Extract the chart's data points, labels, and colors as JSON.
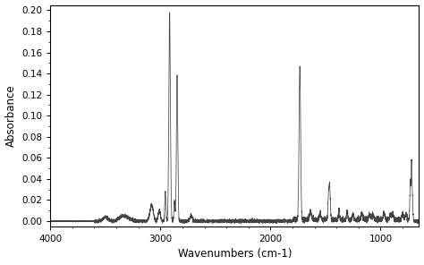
{
  "xlabel": "Wavenumbers (cm-1)",
  "ylabel": "Absorbance",
  "xlim": [
    4000,
    650
  ],
  "ylim": [
    -0.005,
    0.205
  ],
  "yticks": [
    0.0,
    0.02,
    0.04,
    0.06,
    0.08,
    0.1,
    0.12,
    0.14,
    0.16,
    0.18,
    0.2
  ],
  "xticks": [
    4000,
    3000,
    2000,
    1000
  ],
  "line_color": "#444444",
  "line_width": 0.55,
  "bg_color": "#ffffff",
  "figsize": [
    4.74,
    2.96
  ],
  "dpi": 100
}
